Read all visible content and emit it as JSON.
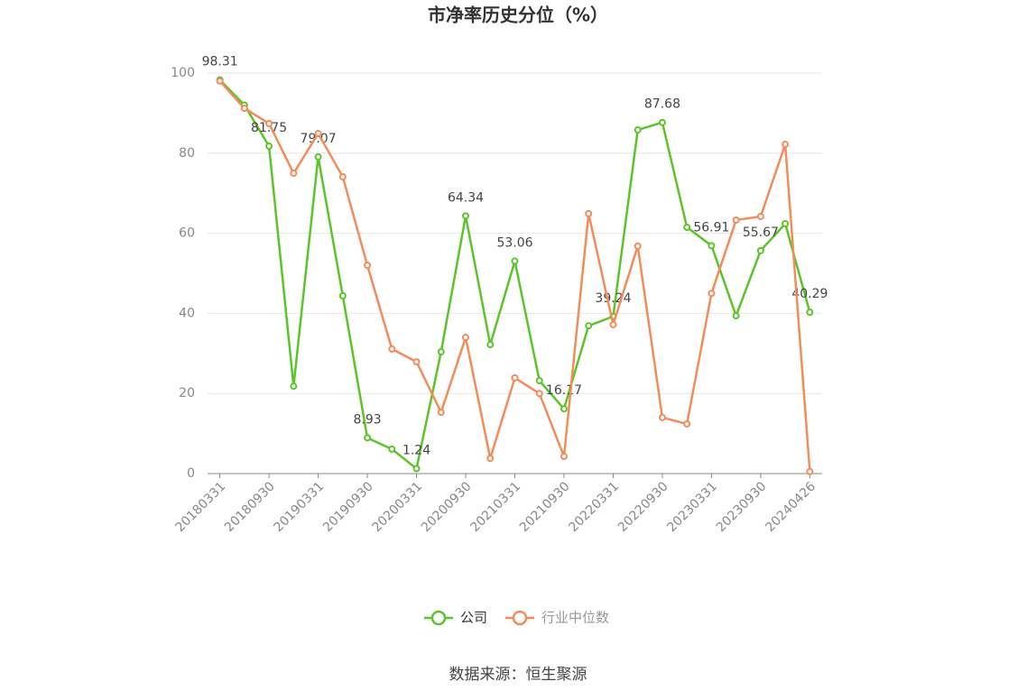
{
  "chart_data": {
    "type": "line",
    "title": "市净率历史分位（%）",
    "categories": [
      "20180331",
      null,
      "20180930",
      null,
      "20190331",
      null,
      "20190930",
      null,
      "20200331",
      null,
      "20200930",
      null,
      "20210331",
      null,
      "20210930",
      null,
      "20220331",
      null,
      "20220930",
      null,
      "20230331",
      null,
      "20230930",
      null,
      "20240426"
    ],
    "series": [
      {
        "name": "公司",
        "color": "#5cc42b",
        "values": [
          98.31,
          92,
          81.75,
          21.8,
          79.07,
          44.4,
          8.93,
          6.1,
          1.24,
          30.4,
          64.34,
          32.2,
          53.06,
          23.2,
          16.17,
          36.9,
          39.24,
          85.8,
          87.68,
          61.5,
          56.91,
          39.4,
          55.67,
          62.4,
          40.29
        ],
        "value_labels": [
          "98.31",
          null,
          "81.75",
          null,
          "79.07",
          null,
          "8.93",
          null,
          "1.24",
          null,
          "64.34",
          null,
          "53.06",
          null,
          "16.17",
          null,
          "39.24",
          null,
          "87.68",
          null,
          "56.91",
          null,
          "55.67",
          null,
          "40.29"
        ]
      },
      {
        "name": "行业中位数",
        "color": "#f28c5a",
        "values": [
          98.0,
          91.2,
          87.4,
          75.0,
          84.9,
          74.1,
          52.0,
          31.1,
          27.9,
          15.3,
          34.0,
          3.8,
          23.9,
          20.0,
          4.3,
          64.9,
          37.2,
          56.8,
          14.0,
          12.4,
          45.0,
          63.3,
          64.2,
          82.2,
          0.5
        ]
      }
    ],
    "ylim": [
      0,
      100
    ],
    "yticks": [
      0,
      20,
      40,
      60,
      80,
      100
    ],
    "grid": true
  },
  "source": "数据来源：恒生聚源"
}
